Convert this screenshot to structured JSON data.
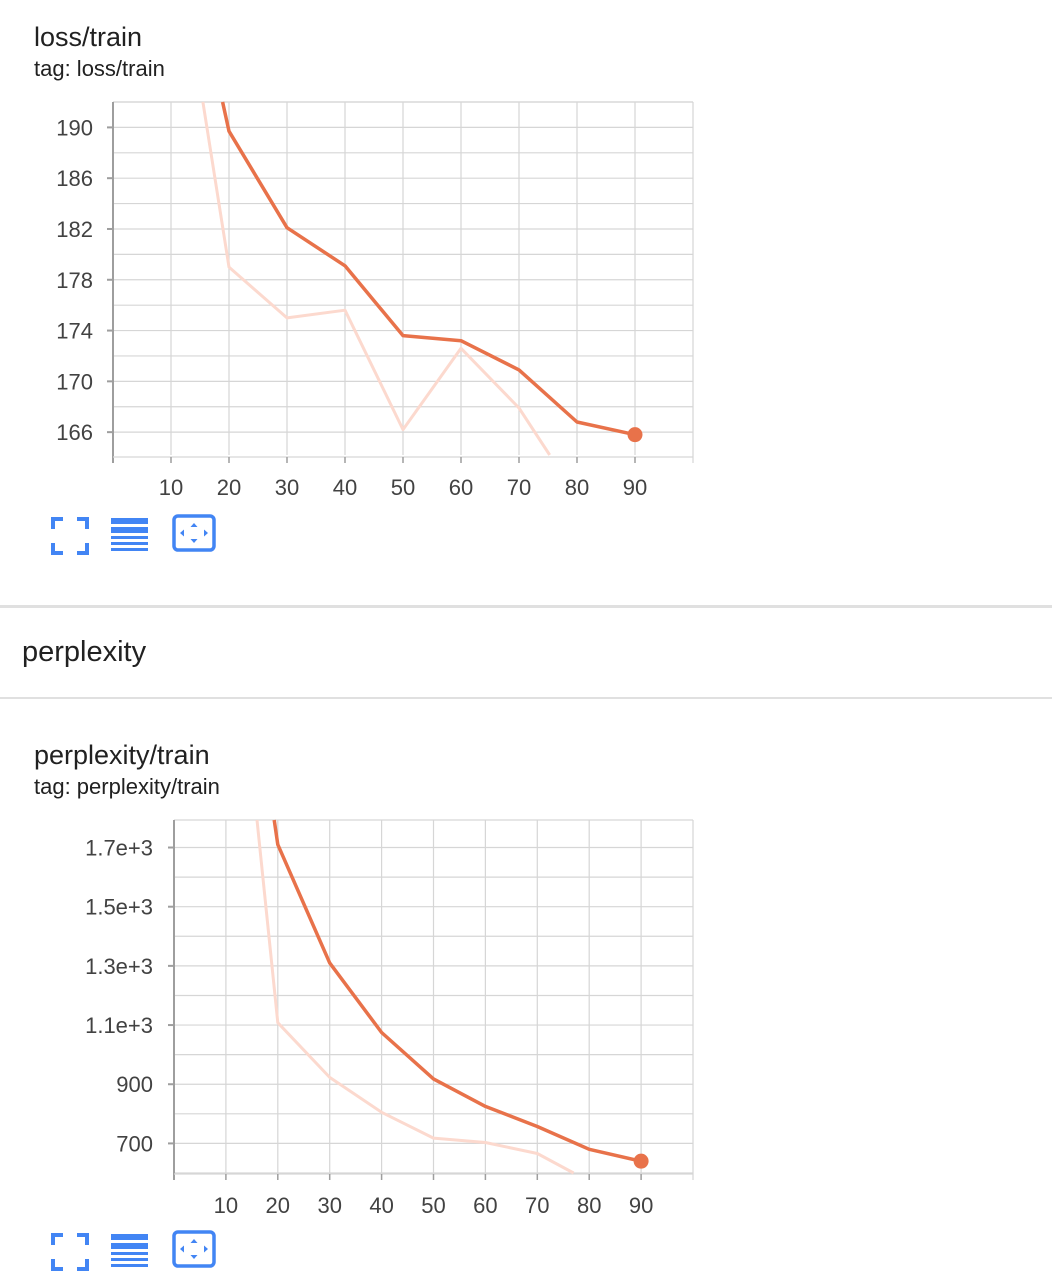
{
  "cards": [
    {
      "title": "loss/train",
      "tag": "tag: loss/train"
    },
    {
      "title": "perplexity/train",
      "tag": "tag: perplexity/train"
    }
  ],
  "group": {
    "title": "perplexity"
  },
  "icons": {
    "fullscreen": "fullscreen-icon",
    "log_scale": "log-scale-toggle-icon",
    "fit_domain": "fit-domain-icon",
    "accent_color": "#4285f4"
  },
  "colors": {
    "smoothed": "#e8724a",
    "raw": "#fcd9ce",
    "grid": "#d6d6d6",
    "axis": "#9e9e9e"
  },
  "chart_data": [
    {
      "type": "line",
      "title": "loss/train",
      "xlabel": "",
      "ylabel": "",
      "x_ticks": [
        10,
        20,
        30,
        40,
        50,
        60,
        70,
        80,
        90
      ],
      "y_ticks": [
        166,
        170,
        174,
        178,
        182,
        186,
        190
      ],
      "xlim": [
        0,
        100
      ],
      "ylim": [
        164.2,
        192
      ],
      "grid": true,
      "series": [
        {
          "x": [
            15.5,
            20,
            30,
            40,
            50,
            60,
            70,
            75.3
          ],
          "y": [
            192,
            179,
            175,
            175.6,
            166.2,
            172.6,
            167.9,
            164.2
          ]
        },
        {
          "x": [
            18.9,
            20,
            30,
            40,
            50,
            60,
            70,
            80,
            90
          ],
          "y": [
            192,
            189.7,
            182.1,
            179.1,
            173.6,
            173.2,
            170.9,
            166.8,
            165.8
          ],
          "last_point_marker": true
        }
      ]
    },
    {
      "type": "line",
      "title": "perplexity/train",
      "xlabel": "",
      "ylabel": "",
      "x_ticks": [
        10,
        20,
        30,
        40,
        50,
        60,
        70,
        80,
        90
      ],
      "y_ticks": [
        700,
        900,
        1100,
        1300,
        1500,
        1700
      ],
      "y_tick_labels": [
        "700",
        "900",
        "1.1e+3",
        "1.3e+3",
        "1.5e+3",
        "1.7e+3"
      ],
      "xlim": [
        0,
        100
      ],
      "ylim": [
        600,
        1793
      ],
      "grid": true,
      "series": [
        {
          "x": [
            16,
            20,
            30,
            40,
            50,
            60,
            70,
            77
          ],
          "y": [
            1793,
            1108,
            923,
            805,
            718,
            703,
            666,
            600
          ]
        },
        {
          "x": [
            19.3,
            20,
            30,
            40,
            50,
            60,
            70,
            80,
            90
          ],
          "y": [
            1793,
            1710,
            1310,
            1075,
            918,
            825,
            757,
            680,
            640
          ],
          "last_point_marker": true
        }
      ]
    }
  ]
}
